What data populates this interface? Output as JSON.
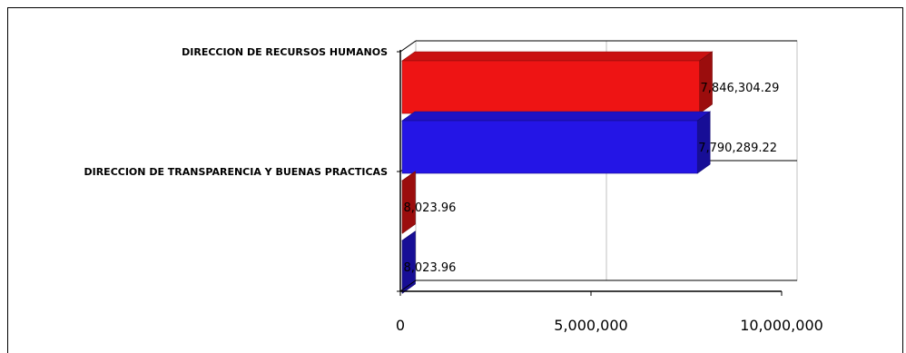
{
  "chart_data": {
    "type": "bar",
    "orientation": "horizontal",
    "style": "3d",
    "title": "",
    "xlabel": "",
    "ylabel": "",
    "categories": [
      "DIRECCION DE RECURSOS HUMANOS",
      "DIRECCION DE TRANSPARENCIA Y BUENAS PRACTICAS"
    ],
    "series": [
      {
        "color": "#ee1414",
        "values": [
          7846304.29,
          8023.96
        ],
        "labels": [
          "7,846,304.29",
          "8,023.96"
        ]
      },
      {
        "color": "#2415e6",
        "values": [
          7790289.22,
          8023.96
        ],
        "labels": [
          "7,790,289.22",
          "8,023.96"
        ]
      }
    ],
    "xlim": [
      0,
      10000000
    ],
    "xticks": [
      0,
      5000000,
      10000000
    ],
    "xtick_labels": [
      "0",
      "5,000,000",
      "10,000,000"
    ],
    "grid": true,
    "legend": "none"
  }
}
